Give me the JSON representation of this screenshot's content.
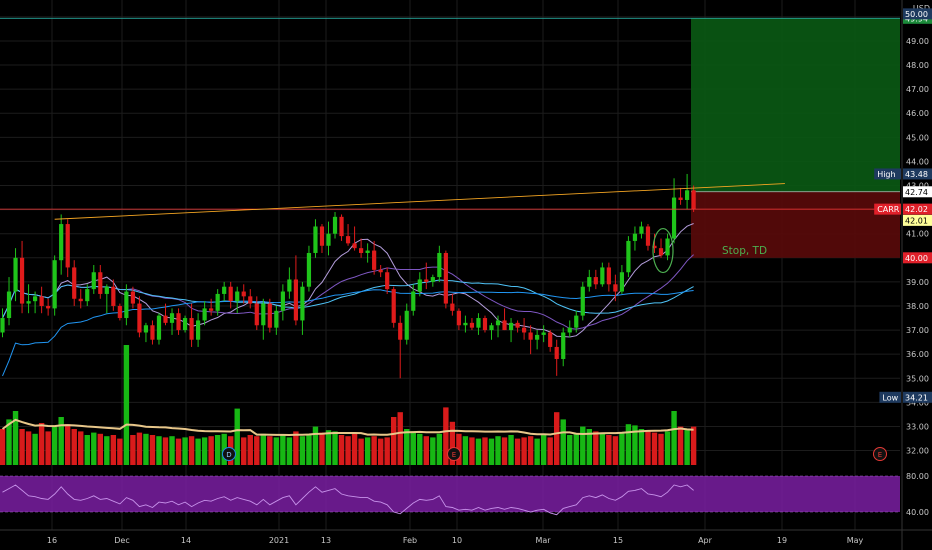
{
  "chart_data": {
    "type": "candlestick",
    "symbol": "CARR",
    "currency": "USD",
    "last_price": 42.02,
    "x_tick_labels": [
      "16",
      "Dec",
      "14",
      "2021",
      "13",
      "Feb",
      "10",
      "Mar",
      "15",
      "Apr",
      "19",
      "May"
    ],
    "y_ticks": [
      32.0,
      33.0,
      34.0,
      35.0,
      36.0,
      37.0,
      38.0,
      39.0,
      40.0,
      41.0,
      42.0,
      43.0,
      44.0,
      45.0,
      46.0,
      47.0,
      48.0,
      49.0,
      50.0
    ],
    "ylim": [
      31.4,
      50.7
    ],
    "rsi_ticks": [
      80.0,
      40.0
    ],
    "price_tags": [
      {
        "label": "High",
        "value": 43.48,
        "color": "#1e3a5f"
      },
      {
        "label": "",
        "value": 42.74,
        "color": "#ffffff"
      },
      {
        "label": "CARR",
        "value": 42.02,
        "color": "#e0202a"
      },
      {
        "label": "",
        "value": 42.01,
        "color": "#ffff99"
      },
      {
        "label": "",
        "value": 40.0,
        "color": "#e0202a"
      },
      {
        "label": "",
        "value": 49.94,
        "color": "#1b8a3a"
      },
      {
        "label": "",
        "value": 50.0,
        "color": "#1e3a5f"
      },
      {
        "label": "Low",
        "value": 34.21,
        "color": "#1e3a5f"
      }
    ],
    "annotations": [
      {
        "text": "Stop, TD"
      }
    ],
    "event_markers": [
      "D",
      "E",
      "E",
      "E"
    ],
    "candles": [
      [
        36.9,
        37.9,
        36.7,
        37.5
      ],
      [
        37.5,
        39.2,
        37.2,
        38.6
      ],
      [
        38.6,
        40.4,
        38.2,
        40.0
      ],
      [
        40.0,
        40.7,
        37.7,
        38.1
      ],
      [
        38.1,
        38.9,
        37.7,
        38.2
      ],
      [
        38.2,
        38.6,
        37.7,
        38.4
      ],
      [
        38.4,
        38.8,
        37.7,
        38.0
      ],
      [
        38.0,
        38.3,
        37.6,
        37.9
      ],
      [
        37.9,
        40.1,
        37.6,
        39.9
      ],
      [
        39.9,
        41.8,
        39.3,
        41.4
      ],
      [
        41.4,
        41.6,
        39.2,
        39.6
      ],
      [
        39.6,
        39.9,
        38.0,
        38.3
      ],
      [
        38.3,
        38.7,
        37.9,
        38.2
      ],
      [
        38.2,
        38.9,
        38.0,
        38.7
      ],
      [
        38.7,
        39.7,
        38.5,
        39.4
      ],
      [
        39.4,
        39.7,
        38.3,
        38.5
      ],
      [
        38.5,
        38.9,
        37.7,
        38.8
      ],
      [
        38.8,
        39.1,
        37.8,
        38.0
      ],
      [
        38.0,
        38.1,
        37.4,
        37.5
      ],
      [
        37.5,
        38.9,
        37.2,
        38.6
      ],
      [
        38.6,
        38.8,
        37.9,
        38.1
      ],
      [
        38.1,
        38.4,
        36.7,
        36.9
      ],
      [
        36.9,
        37.3,
        36.5,
        37.2
      ],
      [
        37.2,
        37.4,
        36.4,
        36.6
      ],
      [
        36.6,
        37.7,
        36.4,
        37.6
      ],
      [
        37.6,
        38.1,
        37.2,
        37.3
      ],
      [
        37.3,
        37.9,
        36.8,
        37.7
      ],
      [
        37.7,
        37.9,
        36.8,
        37.0
      ],
      [
        37.0,
        37.6,
        36.9,
        37.5
      ],
      [
        37.5,
        38.1,
        36.3,
        36.6
      ],
      [
        36.6,
        37.7,
        36.3,
        37.4
      ],
      [
        37.4,
        38.2,
        37.2,
        37.9
      ],
      [
        37.9,
        38.3,
        37.6,
        37.8
      ],
      [
        37.8,
        38.7,
        37.6,
        38.5
      ],
      [
        38.5,
        39.0,
        38.2,
        38.8
      ],
      [
        38.8,
        39.0,
        37.9,
        38.2
      ],
      [
        38.2,
        38.8,
        37.7,
        38.6
      ],
      [
        38.6,
        38.9,
        38.1,
        38.4
      ],
      [
        38.4,
        38.7,
        37.9,
        38.1
      ],
      [
        38.1,
        38.4,
        37.0,
        37.2
      ],
      [
        37.2,
        38.3,
        36.6,
        38.1
      ],
      [
        38.1,
        38.3,
        36.9,
        37.1
      ],
      [
        37.1,
        38.0,
        36.8,
        37.8
      ],
      [
        37.8,
        38.9,
        37.4,
        38.6
      ],
      [
        38.6,
        39.6,
        38.3,
        39.1
      ],
      [
        39.1,
        40.1,
        37.2,
        37.4
      ],
      [
        37.4,
        39.0,
        36.8,
        38.8
      ],
      [
        38.8,
        40.5,
        38.6,
        40.2
      ],
      [
        40.2,
        41.6,
        40.0,
        41.3
      ],
      [
        41.3,
        41.4,
        40.2,
        40.5
      ],
      [
        40.5,
        41.5,
        40.1,
        41.0
      ],
      [
        41.0,
        41.9,
        40.8,
        41.7
      ],
      [
        41.7,
        41.8,
        40.7,
        40.9
      ],
      [
        40.9,
        41.4,
        40.5,
        40.6
      ],
      [
        40.6,
        41.3,
        40.3,
        40.4
      ],
      [
        40.4,
        40.8,
        40.0,
        40.2
      ],
      [
        40.2,
        40.6,
        39.8,
        40.3
      ],
      [
        40.3,
        40.7,
        39.3,
        39.5
      ],
      [
        39.5,
        39.7,
        39.2,
        39.4
      ],
      [
        39.4,
        39.6,
        38.5,
        38.7
      ],
      [
        38.7,
        38.8,
        37.1,
        37.3
      ],
      [
        37.3,
        37.6,
        35.0,
        36.6
      ],
      [
        36.6,
        38.1,
        36.4,
        37.8
      ],
      [
        37.8,
        38.9,
        37.6,
        38.6
      ],
      [
        38.6,
        39.4,
        38.4,
        39.1
      ],
      [
        39.1,
        39.8,
        38.7,
        39.0
      ],
      [
        39.0,
        39.3,
        38.8,
        39.2
      ],
      [
        39.2,
        40.5,
        39.0,
        40.2
      ],
      [
        40.2,
        40.3,
        37.9,
        38.1
      ],
      [
        38.1,
        38.5,
        37.6,
        37.8
      ],
      [
        37.8,
        37.9,
        37.0,
        37.2
      ],
      [
        37.2,
        37.6,
        36.9,
        37.3
      ],
      [
        37.3,
        37.5,
        37.0,
        37.1
      ],
      [
        37.1,
        37.7,
        36.8,
        37.5
      ],
      [
        37.5,
        37.6,
        36.9,
        37.0
      ],
      [
        37.0,
        37.3,
        36.6,
        37.2
      ],
      [
        37.2,
        37.6,
        36.7,
        37.4
      ],
      [
        37.4,
        37.9,
        37.0,
        37.0
      ],
      [
        37.0,
        37.5,
        36.5,
        37.3
      ],
      [
        37.3,
        37.4,
        36.9,
        37.1
      ],
      [
        37.1,
        37.5,
        36.6,
        36.9
      ],
      [
        36.9,
        37.2,
        36.0,
        36.6
      ],
      [
        36.6,
        37.0,
        36.2,
        36.8
      ],
      [
        36.8,
        37.2,
        36.5,
        36.9
      ],
      [
        36.9,
        37.0,
        36.1,
        36.3
      ],
      [
        36.3,
        36.6,
        35.1,
        35.8
      ],
      [
        35.8,
        37.1,
        35.5,
        36.9
      ],
      [
        36.9,
        37.4,
        36.7,
        37.1
      ],
      [
        37.1,
        37.8,
        36.9,
        37.6
      ],
      [
        37.6,
        39.0,
        37.4,
        38.8
      ],
      [
        38.8,
        39.5,
        38.6,
        39.2
      ],
      [
        39.2,
        39.5,
        38.7,
        38.9
      ],
      [
        38.9,
        39.8,
        38.8,
        39.6
      ],
      [
        39.6,
        39.8,
        38.6,
        38.9
      ],
      [
        38.9,
        39.3,
        38.2,
        38.6
      ],
      [
        38.6,
        39.7,
        38.5,
        39.4
      ],
      [
        39.4,
        40.9,
        39.2,
        40.7
      ],
      [
        40.7,
        41.3,
        40.3,
        41.0
      ],
      [
        41.0,
        41.5,
        40.8,
        41.3
      ],
      [
        41.3,
        41.4,
        40.3,
        40.5
      ],
      [
        40.5,
        41.0,
        40.2,
        40.4
      ],
      [
        40.4,
        40.8,
        40.0,
        40.1
      ],
      [
        40.1,
        41.0,
        39.9,
        40.8
      ],
      [
        40.8,
        43.3,
        40.6,
        42.5
      ],
      [
        42.5,
        42.9,
        42.2,
        42.4
      ],
      [
        42.4,
        43.48,
        42.0,
        42.8
      ],
      [
        42.8,
        43.0,
        41.9,
        42.02
      ]
    ],
    "volume_scale_max": 100,
    "volumes": [
      [
        30,
        "r"
      ],
      [
        38,
        "g"
      ],
      [
        45,
        "g"
      ],
      [
        30,
        "r"
      ],
      [
        28,
        "r"
      ],
      [
        26,
        "g"
      ],
      [
        35,
        "r"
      ],
      [
        28,
        "r"
      ],
      [
        32,
        "g"
      ],
      [
        40,
        "g"
      ],
      [
        34,
        "r"
      ],
      [
        30,
        "r"
      ],
      [
        28,
        "r"
      ],
      [
        25,
        "g"
      ],
      [
        27,
        "g"
      ],
      [
        26,
        "r"
      ],
      [
        24,
        "g"
      ],
      [
        25,
        "r"
      ],
      [
        22,
        "r"
      ],
      [
        100,
        "g"
      ],
      [
        25,
        "r"
      ],
      [
        27,
        "r"
      ],
      [
        26,
        "g"
      ],
      [
        25,
        "r"
      ],
      [
        24,
        "g"
      ],
      [
        23,
        "r"
      ],
      [
        24,
        "g"
      ],
      [
        22,
        "r"
      ],
      [
        23,
        "g"
      ],
      [
        24,
        "r"
      ],
      [
        22,
        "g"
      ],
      [
        23,
        "g"
      ],
      [
        24,
        "r"
      ],
      [
        25,
        "g"
      ],
      [
        26,
        "g"
      ],
      [
        24,
        "r"
      ],
      [
        47,
        "g"
      ],
      [
        23,
        "r"
      ],
      [
        25,
        "r"
      ],
      [
        24,
        "r"
      ],
      [
        26,
        "g"
      ],
      [
        24,
        "r"
      ],
      [
        23,
        "g"
      ],
      [
        25,
        "g"
      ],
      [
        23,
        "g"
      ],
      [
        28,
        "r"
      ],
      [
        24,
        "g"
      ],
      [
        26,
        "g"
      ],
      [
        32,
        "g"
      ],
      [
        27,
        "r"
      ],
      [
        29,
        "g"
      ],
      [
        28,
        "g"
      ],
      [
        25,
        "r"
      ],
      [
        24,
        "r"
      ],
      [
        26,
        "r"
      ],
      [
        22,
        "r"
      ],
      [
        23,
        "g"
      ],
      [
        24,
        "r"
      ],
      [
        22,
        "r"
      ],
      [
        23,
        "r"
      ],
      [
        40,
        "r"
      ],
      [
        44,
        "r"
      ],
      [
        30,
        "g"
      ],
      [
        28,
        "g"
      ],
      [
        26,
        "g"
      ],
      [
        24,
        "r"
      ],
      [
        23,
        "g"
      ],
      [
        26,
        "g"
      ],
      [
        48,
        "r"
      ],
      [
        36,
        "r"
      ],
      [
        26,
        "r"
      ],
      [
        24,
        "g"
      ],
      [
        23,
        "r"
      ],
      [
        22,
        "g"
      ],
      [
        23,
        "r"
      ],
      [
        22,
        "g"
      ],
      [
        24,
        "g"
      ],
      [
        23,
        "r"
      ],
      [
        25,
        "g"
      ],
      [
        22,
        "r"
      ],
      [
        23,
        "r"
      ],
      [
        24,
        "r"
      ],
      [
        22,
        "g"
      ],
      [
        26,
        "g"
      ],
      [
        23,
        "r"
      ],
      [
        44,
        "r"
      ],
      [
        38,
        "g"
      ],
      [
        25,
        "g"
      ],
      [
        26,
        "g"
      ],
      [
        32,
        "g"
      ],
      [
        30,
        "g"
      ],
      [
        28,
        "r"
      ],
      [
        26,
        "g"
      ],
      [
        25,
        "r"
      ],
      [
        24,
        "r"
      ],
      [
        27,
        "g"
      ],
      [
        34,
        "g"
      ],
      [
        33,
        "g"
      ],
      [
        30,
        "g"
      ],
      [
        28,
        "r"
      ],
      [
        27,
        "r"
      ],
      [
        26,
        "r"
      ],
      [
        28,
        "g"
      ],
      [
        45,
        "g"
      ],
      [
        32,
        "r"
      ],
      [
        30,
        "g"
      ],
      [
        32,
        "r"
      ]
    ],
    "rsi": [
      62,
      66,
      70,
      64,
      58,
      57,
      55,
      54,
      60,
      68,
      60,
      54,
      53,
      55,
      58,
      54,
      55,
      52,
      49,
      56,
      53,
      46,
      48,
      45,
      51,
      50,
      52,
      48,
      51,
      46,
      50,
      53,
      52,
      55,
      57,
      53,
      56,
      54,
      52,
      48,
      54,
      48,
      52,
      56,
      58,
      48,
      55,
      62,
      68,
      62,
      64,
      66,
      60,
      58,
      57,
      56,
      56,
      52,
      51,
      48,
      40,
      38,
      44,
      50,
      54,
      53,
      54,
      58,
      46,
      45,
      42,
      43,
      42,
      45,
      42,
      44,
      45,
      43,
      45,
      44,
      42,
      40,
      42,
      43,
      39,
      37,
      44,
      46,
      48,
      56,
      58,
      56,
      59,
      55,
      53,
      57,
      63,
      64,
      66,
      60,
      59,
      57,
      62,
      70,
      68,
      70,
      64
    ]
  }
}
